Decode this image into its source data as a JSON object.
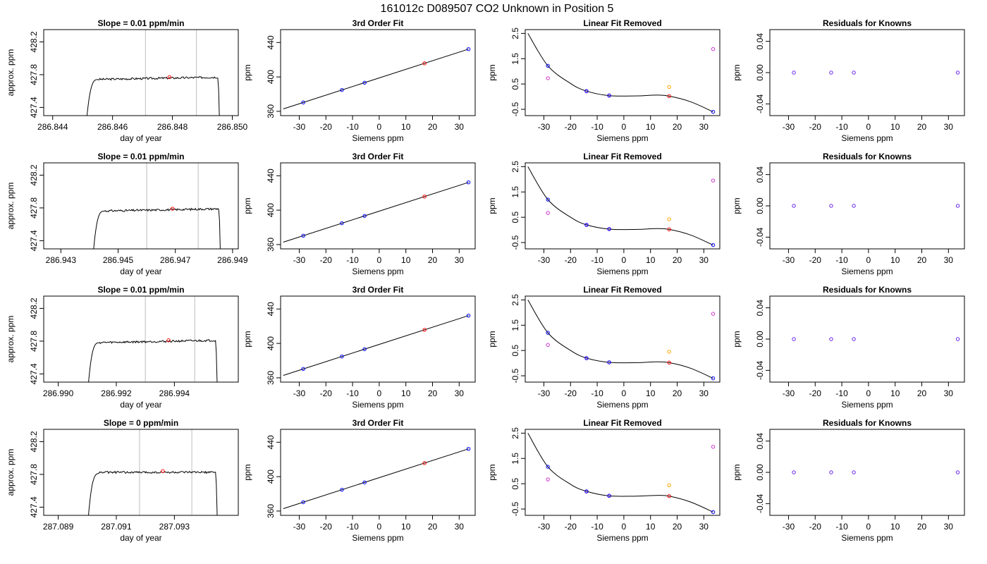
{
  "figure": {
    "title": "161012c      D089507    CO2 Unknown in Position  5"
  },
  "colors": {
    "trace": "#000000",
    "guide_line": "#c8c8c8",
    "known": "#0000ff",
    "unknown": "#ff0000",
    "unknown_alt": "#ffa500",
    "raw_known": "#cc33cc",
    "residual": "#6622ee",
    "fit_line": "#000000"
  },
  "chart_data": [
    {
      "type": "line",
      "row": 0,
      "col": 0,
      "title": "Slope =  0.01  ppm/min",
      "xlabel": "day of year",
      "ylabel": "approx. ppm",
      "xlim": [
        286.8437,
        286.8502
      ],
      "ylim": [
        427.3,
        428.35
      ],
      "x_ticks": [
        286.844,
        286.846,
        286.848,
        286.85
      ],
      "x_tick_labels": [
        "286.844",
        "286.846",
        "286.848",
        "286.850"
      ],
      "y_ticks": [
        427.4,
        427.8,
        428.2
      ],
      "y_tick_labels": [
        "427.4",
        "427.8",
        "428.2"
      ],
      "vlines": [
        286.8471,
        286.8488
      ],
      "marker": {
        "x": 286.8479,
        "y": 427.77
      },
      "trace": {
        "t_start": 286.8451,
        "t_end": 286.8496,
        "plateau": 427.77,
        "drift": 0.03,
        "base": 427.1
      }
    },
    {
      "type": "scatter",
      "row": 0,
      "col": 1,
      "title": "3rd Order Fit",
      "xlabel": "Siemens ppm",
      "ylabel": "ppm",
      "xlim": [
        -37,
        36
      ],
      "ylim": [
        355,
        455
      ],
      "x_ticks": [
        -30,
        -20,
        -10,
        0,
        10,
        20,
        30
      ],
      "x_tick_labels": [
        "-30",
        "-20",
        "-10",
        "0",
        "10",
        "20",
        "30"
      ],
      "y_ticks": [
        360,
        400,
        440
      ],
      "y_tick_labels": [
        "360",
        "400",
        "440"
      ],
      "knowns": [
        [
          -28.5,
          370.3
        ],
        [
          -14,
          384.8
        ],
        [
          -5.5,
          393.3
        ],
        [
          33.5,
          432.3
        ]
      ],
      "unknowns": [
        [
          17,
          415.8
        ]
      ],
      "fit_line": [
        [
          -36,
          362.8
        ],
        [
          33.5,
          432.3
        ]
      ]
    },
    {
      "type": "scatter",
      "row": 0,
      "col": 2,
      "title": "Linear Fit Removed",
      "xlabel": "Siemens ppm",
      "ylabel": "ppm",
      "xlim": [
        -37,
        36
      ],
      "ylim": [
        -0.75,
        2.65
      ],
      "x_ticks": [
        -30,
        -20,
        -10,
        0,
        10,
        20,
        30
      ],
      "x_tick_labels": [
        "-30",
        "-20",
        "-10",
        "0",
        "10",
        "20",
        "30"
      ],
      "y_ticks": [
        -0.5,
        0.5,
        1.5,
        2.5
      ],
      "y_tick_labels": [
        "-0.5",
        "0.5",
        "1.5",
        "2.5"
      ],
      "knowns": [
        [
          -28.5,
          1.22
        ],
        [
          -14,
          0.22
        ],
        [
          -5.5,
          0.04
        ],
        [
          33.5,
          -0.6
        ]
      ],
      "raw_knowns": [
        [
          -28.5,
          0.73
        ],
        [
          -14,
          0.21
        ],
        [
          -5.5,
          0.05
        ],
        [
          33.5,
          1.88
        ]
      ],
      "unknowns": [
        [
          17,
          0.02
        ]
      ],
      "unknowns_alt": [
        [
          17,
          0.38
        ]
      ],
      "cubic_fit": [
        [
          -36,
          2.5
        ],
        [
          -28.5,
          1.22
        ],
        [
          -20,
          0.52
        ],
        [
          -14,
          0.22
        ],
        [
          -5.5,
          0.04
        ],
        [
          5,
          0.03
        ],
        [
          12,
          0.06
        ],
        [
          17,
          0.02
        ],
        [
          25,
          -0.2
        ],
        [
          33.5,
          -0.6
        ]
      ]
    },
    {
      "type": "scatter",
      "row": 0,
      "col": 3,
      "title": "Residuals for Knowns",
      "xlabel": "Siemens ppm",
      "ylabel": "ppm",
      "xlim": [
        -37,
        36
      ],
      "ylim": [
        -0.055,
        0.055
      ],
      "x_ticks": [
        -30,
        -20,
        -10,
        0,
        10,
        20,
        30
      ],
      "x_tick_labels": [
        "-30",
        "-20",
        "-10",
        "0",
        "10",
        "20",
        "30"
      ],
      "y_ticks": [
        -0.04,
        0,
        0.04
      ],
      "y_tick_labels": [
        "-0.04",
        "0.00",
        "0.04"
      ],
      "points": [
        [
          -28,
          0
        ],
        [
          -14,
          0
        ],
        [
          -5.5,
          0
        ],
        [
          33.5,
          0
        ]
      ]
    },
    {
      "type": "line",
      "row": 1,
      "col": 0,
      "title": "Slope =  0.01  ppm/min",
      "xlabel": "day of year",
      "ylabel": "approx. ppm",
      "xlim": [
        286.9424,
        286.9492
      ],
      "ylim": [
        427.3,
        428.35
      ],
      "x_ticks": [
        286.943,
        286.945,
        286.947,
        286.949
      ],
      "x_tick_labels": [
        "286.943",
        "286.945",
        "286.947",
        "286.949"
      ],
      "y_ticks": [
        427.4,
        427.8,
        428.2
      ],
      "y_tick_labels": [
        "427.4",
        "427.8",
        "428.2"
      ],
      "vlines": [
        286.946,
        286.9478
      ],
      "marker": {
        "x": 286.9469,
        "y": 427.79
      },
      "trace": {
        "t_start": 286.9441,
        "t_end": 286.9486,
        "plateau": 427.79,
        "drift": 0.03,
        "base": 427.1
      }
    },
    {
      "type": "scatter",
      "row": 1,
      "col": 1,
      "title": "3rd Order Fit",
      "xlabel": "Siemens ppm",
      "ylabel": "ppm",
      "xlim": [
        -37,
        36
      ],
      "ylim": [
        355,
        455
      ],
      "x_ticks": [
        -30,
        -20,
        -10,
        0,
        10,
        20,
        30
      ],
      "x_tick_labels": [
        "-30",
        "-20",
        "-10",
        "0",
        "10",
        "20",
        "30"
      ],
      "y_ticks": [
        360,
        400,
        440
      ],
      "y_tick_labels": [
        "360",
        "400",
        "440"
      ],
      "knowns": [
        [
          -28.5,
          370.3
        ],
        [
          -14,
          384.8
        ],
        [
          -5.5,
          393.3
        ],
        [
          33.5,
          432.3
        ]
      ],
      "unknowns": [
        [
          17,
          415.8
        ]
      ],
      "fit_line": [
        [
          -36,
          362.8
        ],
        [
          33.5,
          432.3
        ]
      ]
    },
    {
      "type": "scatter",
      "row": 1,
      "col": 2,
      "title": "Linear Fit Removed",
      "xlabel": "Siemens ppm",
      "ylabel": "ppm",
      "xlim": [
        -37,
        36
      ],
      "ylim": [
        -0.75,
        2.65
      ],
      "x_ticks": [
        -30,
        -20,
        -10,
        0,
        10,
        20,
        30
      ],
      "x_tick_labels": [
        "-30",
        "-20",
        "-10",
        "0",
        "10",
        "20",
        "30"
      ],
      "y_ticks": [
        -0.5,
        0.5,
        1.5,
        2.5
      ],
      "y_tick_labels": [
        "-0.5",
        "0.5",
        "1.5",
        "2.5"
      ],
      "knowns": [
        [
          -28.5,
          1.2
        ],
        [
          -14,
          0.2
        ],
        [
          -5.5,
          0.03
        ],
        [
          33.5,
          -0.6
        ]
      ],
      "raw_knowns": [
        [
          -28.5,
          0.67
        ],
        [
          -14,
          0.19
        ],
        [
          -5.5,
          0.04
        ],
        [
          33.5,
          1.95
        ]
      ],
      "unknowns": [
        [
          17,
          0.02
        ]
      ],
      "unknowns_alt": [
        [
          17,
          0.42
        ]
      ],
      "cubic_fit": [
        [
          -36,
          2.5
        ],
        [
          -28.5,
          1.2
        ],
        [
          -20,
          0.5
        ],
        [
          -14,
          0.2
        ],
        [
          -5.5,
          0.03
        ],
        [
          5,
          0.02
        ],
        [
          12,
          0.05
        ],
        [
          17,
          0.02
        ],
        [
          25,
          -0.2
        ],
        [
          33.5,
          -0.6
        ]
      ]
    },
    {
      "type": "scatter",
      "row": 1,
      "col": 3,
      "title": "Residuals for Knowns",
      "xlabel": "Siemens ppm",
      "ylabel": "ppm",
      "xlim": [
        -37,
        36
      ],
      "ylim": [
        -0.055,
        0.055
      ],
      "x_ticks": [
        -30,
        -20,
        -10,
        0,
        10,
        20,
        30
      ],
      "x_tick_labels": [
        "-30",
        "-20",
        "-10",
        "0",
        "10",
        "20",
        "30"
      ],
      "y_ticks": [
        -0.04,
        0,
        0.04
      ],
      "y_tick_labels": [
        "-0.04",
        "0.00",
        "0.04"
      ],
      "points": [
        [
          -28,
          0
        ],
        [
          -14,
          0
        ],
        [
          -5.5,
          0
        ],
        [
          33.5,
          0
        ]
      ]
    },
    {
      "type": "line",
      "row": 2,
      "col": 0,
      "title": "Slope =  0.01  ppm/min",
      "xlabel": "day of year",
      "ylabel": "approx. ppm",
      "xlim": [
        286.9895,
        286.9962
      ],
      "ylim": [
        427.3,
        428.35
      ],
      "x_ticks": [
        286.99,
        286.992,
        286.994
      ],
      "x_tick_labels": [
        "286.990",
        "286.992",
        "286.994"
      ],
      "y_ticks": [
        427.4,
        427.8,
        428.2
      ],
      "y_tick_labels": [
        "427.4",
        "427.8",
        "428.2"
      ],
      "vlines": [
        286.993,
        286.9947
      ],
      "marker": {
        "x": 286.9938,
        "y": 427.81
      },
      "trace": {
        "t_start": 286.991,
        "t_end": 286.9955,
        "plateau": 427.81,
        "drift": 0.03,
        "base": 427.1
      }
    },
    {
      "type": "scatter",
      "row": 2,
      "col": 1,
      "title": "3rd Order Fit",
      "xlabel": "Siemens ppm",
      "ylabel": "ppm",
      "xlim": [
        -37,
        36
      ],
      "ylim": [
        355,
        455
      ],
      "x_ticks": [
        -30,
        -20,
        -10,
        0,
        10,
        20,
        30
      ],
      "x_tick_labels": [
        "-30",
        "-20",
        "-10",
        "0",
        "10",
        "20",
        "30"
      ],
      "y_ticks": [
        360,
        400,
        440
      ],
      "y_tick_labels": [
        "360",
        "400",
        "440"
      ],
      "knowns": [
        [
          -28.5,
          370.3
        ],
        [
          -14,
          384.8
        ],
        [
          -5.5,
          393.3
        ],
        [
          33.5,
          432.3
        ]
      ],
      "unknowns": [
        [
          17,
          415.8
        ]
      ],
      "fit_line": [
        [
          -36,
          362.8
        ],
        [
          33.5,
          432.3
        ]
      ]
    },
    {
      "type": "scatter",
      "row": 2,
      "col": 2,
      "title": "Linear Fit Removed",
      "xlabel": "Siemens ppm",
      "ylabel": "ppm",
      "xlim": [
        -37,
        36
      ],
      "ylim": [
        -0.75,
        2.65
      ],
      "x_ticks": [
        -30,
        -20,
        -10,
        0,
        10,
        20,
        30
      ],
      "x_tick_labels": [
        "-30",
        "-20",
        "-10",
        "0",
        "10",
        "20",
        "30"
      ],
      "y_ticks": [
        -0.5,
        0.5,
        1.5,
        2.5
      ],
      "y_tick_labels": [
        "-0.5",
        "0.5",
        "1.5",
        "2.5"
      ],
      "knowns": [
        [
          -28.5,
          1.2
        ],
        [
          -14,
          0.2
        ],
        [
          -5.5,
          0.03
        ],
        [
          33.5,
          -0.6
        ]
      ],
      "raw_knowns": [
        [
          -28.5,
          0.72
        ],
        [
          -14,
          0.19
        ],
        [
          -5.5,
          0.03
        ],
        [
          33.5,
          1.95
        ]
      ],
      "unknowns": [
        [
          17,
          0.02
        ]
      ],
      "unknowns_alt": [
        [
          17,
          0.45
        ]
      ],
      "cubic_fit": [
        [
          -36,
          2.5
        ],
        [
          -28.5,
          1.2
        ],
        [
          -20,
          0.5
        ],
        [
          -14,
          0.2
        ],
        [
          -5.5,
          0.03
        ],
        [
          5,
          0.02
        ],
        [
          12,
          0.05
        ],
        [
          17,
          0.02
        ],
        [
          25,
          -0.2
        ],
        [
          33.5,
          -0.6
        ]
      ]
    },
    {
      "type": "scatter",
      "row": 2,
      "col": 3,
      "title": "Residuals for Knowns",
      "xlabel": "Siemens ppm",
      "ylabel": "ppm",
      "xlim": [
        -37,
        36
      ],
      "ylim": [
        -0.055,
        0.055
      ],
      "x_ticks": [
        -30,
        -20,
        -10,
        0,
        10,
        20,
        30
      ],
      "x_tick_labels": [
        "-30",
        "-20",
        "-10",
        "0",
        "10",
        "20",
        "30"
      ],
      "y_ticks": [
        -0.04,
        0,
        0.04
      ],
      "y_tick_labels": [
        "-0.04",
        "0.00",
        "0.04"
      ],
      "points": [
        [
          -28,
          0
        ],
        [
          -14,
          0
        ],
        [
          -5.5,
          0
        ],
        [
          33.5,
          0
        ]
      ]
    },
    {
      "type": "line",
      "row": 3,
      "col": 0,
      "title": "Slope =  0  ppm/min",
      "xlabel": "day of year",
      "ylabel": "approx. ppm",
      "xlim": [
        287.0885,
        287.0952
      ],
      "ylim": [
        427.3,
        428.35
      ],
      "x_ticks": [
        287.089,
        287.091,
        287.093
      ],
      "x_tick_labels": [
        "287.089",
        "287.091",
        "287.093"
      ],
      "y_ticks": [
        427.4,
        427.8,
        428.2
      ],
      "y_tick_labels": [
        "427.4",
        "427.8",
        "428.2"
      ],
      "vlines": [
        287.0918,
        287.0936
      ],
      "marker": {
        "x": 287.0926,
        "y": 427.84
      },
      "trace": {
        "t_start": 287.09,
        "t_end": 287.0945,
        "plateau": 427.84,
        "drift": 0.0,
        "base": 427.1
      }
    },
    {
      "type": "scatter",
      "row": 3,
      "col": 1,
      "title": "3rd Order Fit",
      "xlabel": "Siemens ppm",
      "ylabel": "ppm",
      "xlim": [
        -37,
        36
      ],
      "ylim": [
        355,
        455
      ],
      "x_ticks": [
        -30,
        -20,
        -10,
        0,
        10,
        20,
        30
      ],
      "x_tick_labels": [
        "-30",
        "-20",
        "-10",
        "0",
        "10",
        "20",
        "30"
      ],
      "y_ticks": [
        360,
        400,
        440
      ],
      "y_tick_labels": [
        "360",
        "400",
        "440"
      ],
      "knowns": [
        [
          -28.5,
          370.3
        ],
        [
          -14,
          384.8
        ],
        [
          -5.5,
          393.3
        ],
        [
          33.5,
          432.3
        ]
      ],
      "unknowns": [
        [
          17,
          415.8
        ]
      ],
      "fit_line": [
        [
          -36,
          362.8
        ],
        [
          33.5,
          432.3
        ]
      ]
    },
    {
      "type": "scatter",
      "row": 3,
      "col": 2,
      "title": "Linear Fit Removed",
      "xlabel": "Siemens ppm",
      "ylabel": "ppm",
      "xlim": [
        -37,
        36
      ],
      "ylim": [
        -0.75,
        2.65
      ],
      "x_ticks": [
        -30,
        -20,
        -10,
        0,
        10,
        20,
        30
      ],
      "x_tick_labels": [
        "-30",
        "-20",
        "-10",
        "0",
        "10",
        "20",
        "30"
      ],
      "y_ticks": [
        -0.5,
        0.5,
        1.5,
        2.5
      ],
      "y_tick_labels": [
        "-0.5",
        "0.5",
        "1.5",
        "2.5"
      ],
      "knowns": [
        [
          -28.5,
          1.17
        ],
        [
          -14,
          0.2
        ],
        [
          -5.5,
          0.02
        ],
        [
          33.5,
          -0.62
        ]
      ],
      "raw_knowns": [
        [
          -28.5,
          0.67
        ],
        [
          -14,
          0.19
        ],
        [
          -5.5,
          0.03
        ],
        [
          33.5,
          1.96
        ]
      ],
      "unknowns": [
        [
          17,
          0.01
        ]
      ],
      "unknowns_alt": [
        [
          17,
          0.44
        ]
      ],
      "cubic_fit": [
        [
          -36,
          2.5
        ],
        [
          -28.5,
          1.17
        ],
        [
          -20,
          0.48
        ],
        [
          -14,
          0.2
        ],
        [
          -5.5,
          0.02
        ],
        [
          5,
          0.01
        ],
        [
          12,
          0.04
        ],
        [
          17,
          0.01
        ],
        [
          25,
          -0.22
        ],
        [
          33.5,
          -0.62
        ]
      ]
    },
    {
      "type": "scatter",
      "row": 3,
      "col": 3,
      "title": "Residuals for Knowns",
      "xlabel": "Siemens ppm",
      "ylabel": "ppm",
      "xlim": [
        -37,
        36
      ],
      "ylim": [
        -0.055,
        0.055
      ],
      "x_ticks": [
        -30,
        -20,
        -10,
        0,
        10,
        20,
        30
      ],
      "x_tick_labels": [
        "-30",
        "-20",
        "-10",
        "0",
        "10",
        "20",
        "30"
      ],
      "y_ticks": [
        -0.04,
        0,
        0.04
      ],
      "y_tick_labels": [
        "-0.04",
        "0.00",
        "0.04"
      ],
      "points": [
        [
          -28,
          0
        ],
        [
          -14,
          0
        ],
        [
          -5.5,
          0
        ],
        [
          33.5,
          0
        ]
      ]
    }
  ]
}
